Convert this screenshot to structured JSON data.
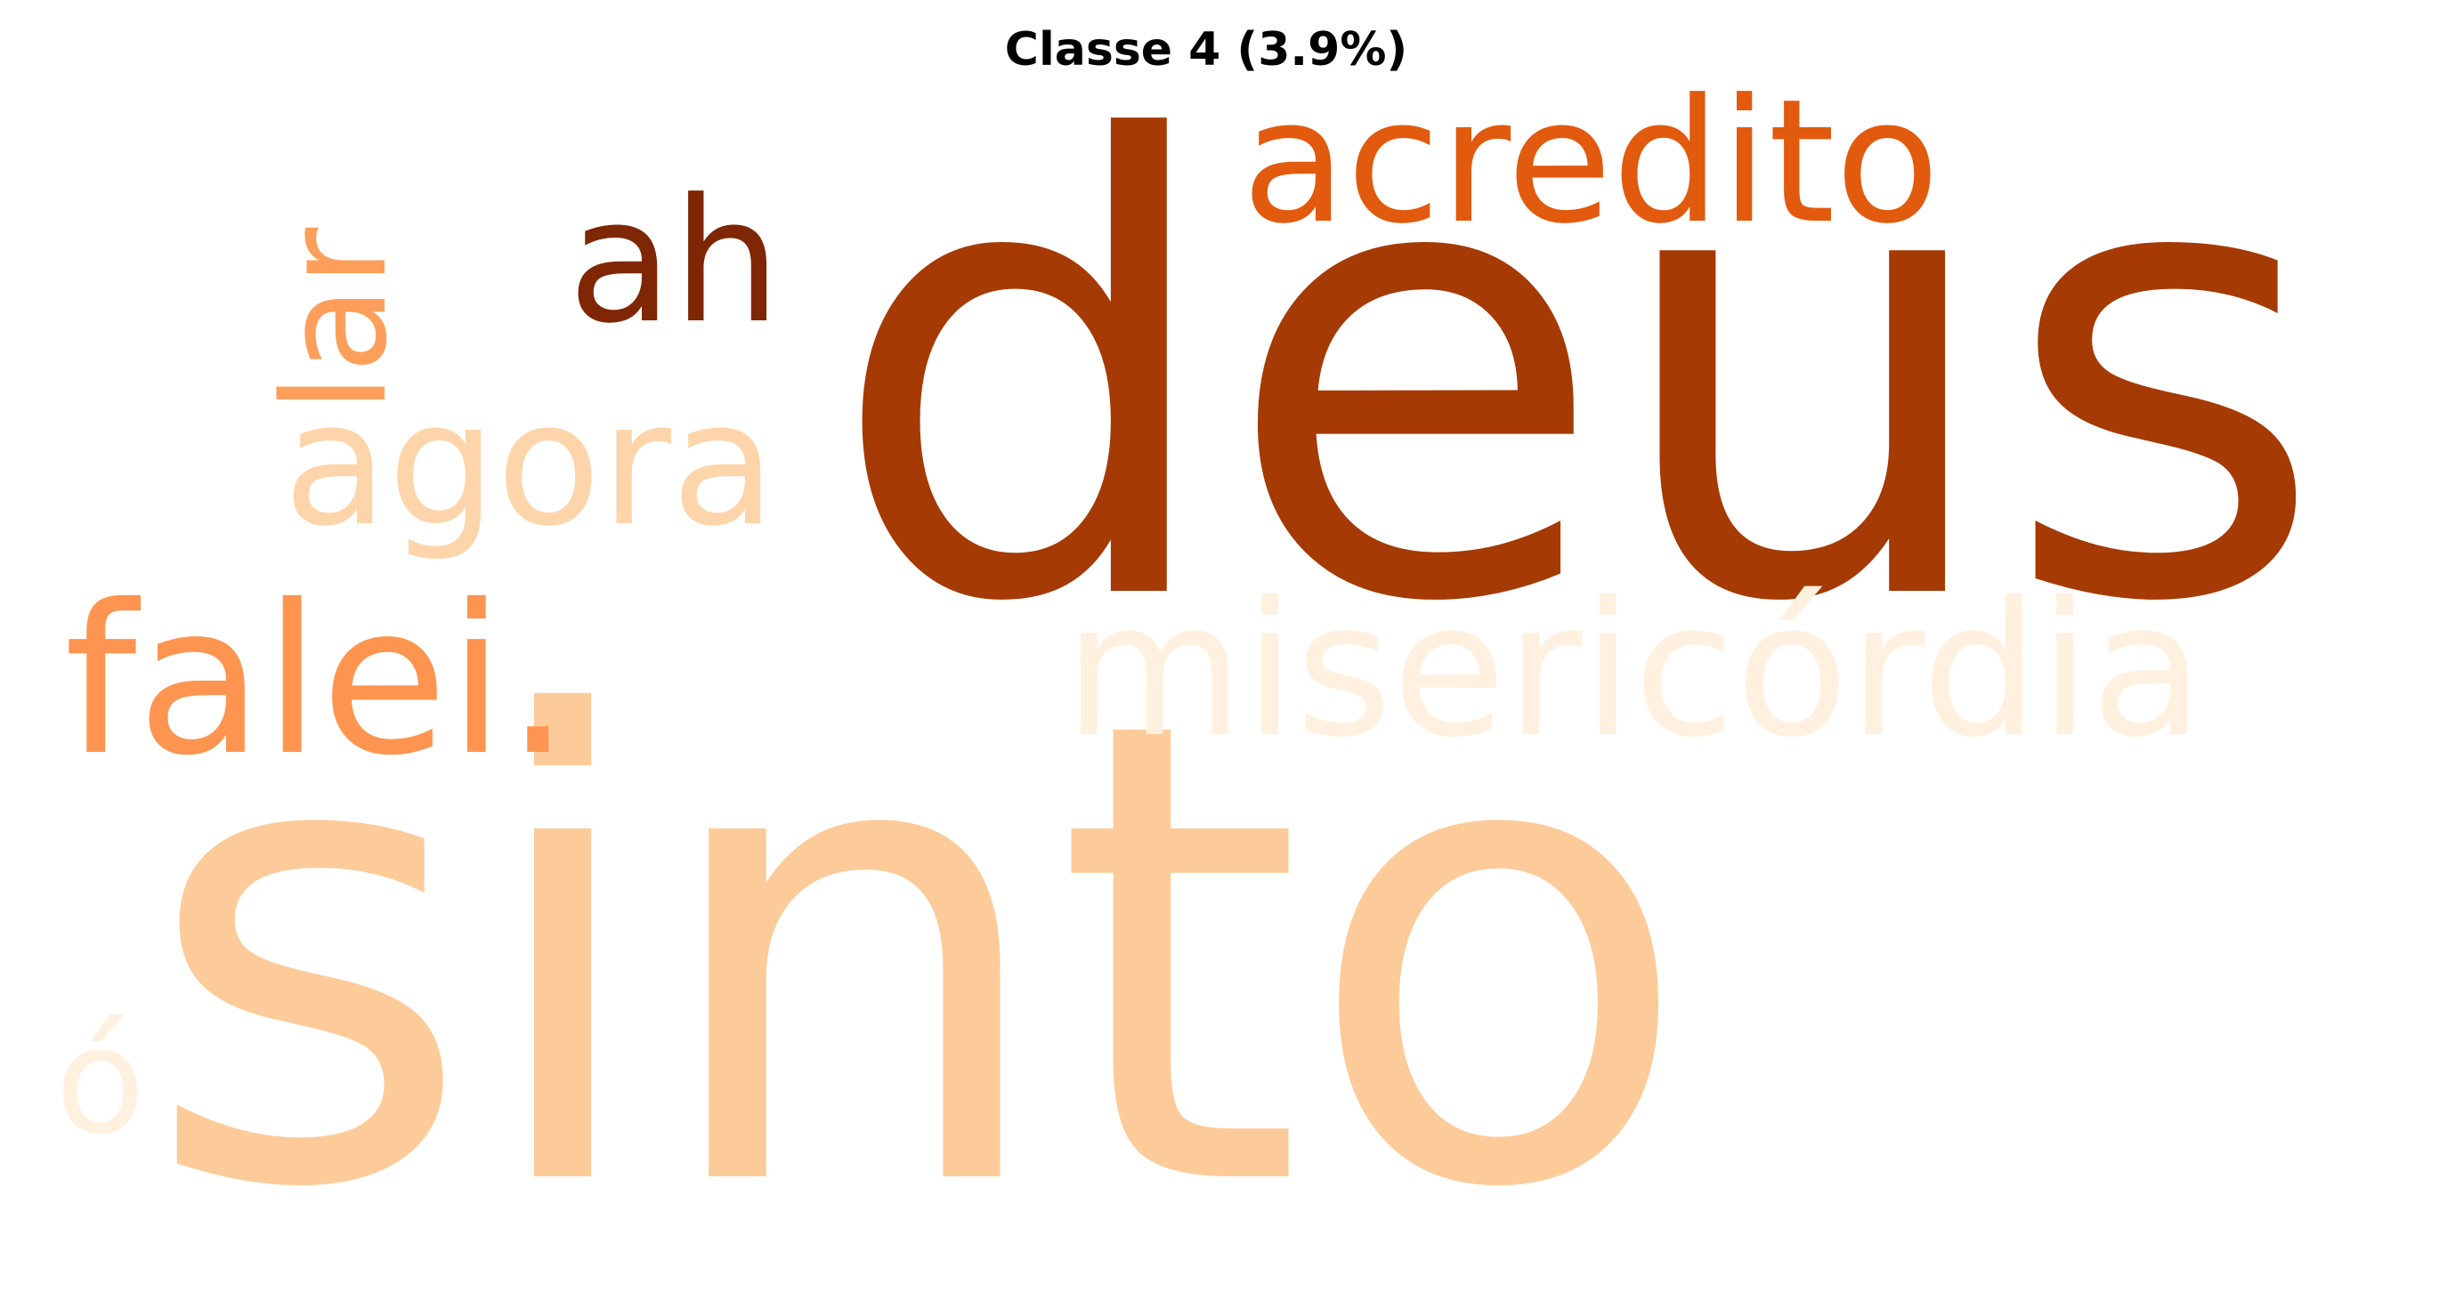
{
  "title": "Classe 4 (3.9%)",
  "words": [
    {
      "id": "deus",
      "text": "deus",
      "color": "#a53a04"
    },
    {
      "id": "sinto",
      "text": "sinto",
      "color": "#fdcb9a"
    },
    {
      "id": "acredito",
      "text": "acredito",
      "color": "#e25a0d"
    },
    {
      "id": "ah",
      "text": "ah",
      "color": "#7f2704"
    },
    {
      "id": "lar",
      "text": "lar",
      "color": "#fd9f5a"
    },
    {
      "id": "agora",
      "text": "agora",
      "color": "#fed5ab"
    },
    {
      "id": "falei",
      "text": "falei.",
      "color": "#fd9551"
    },
    {
      "id": "misericordia",
      "text": "misericórdia",
      "color": "#fff0e0"
    },
    {
      "id": "o",
      "text": "ó",
      "color": "#fff0e0"
    }
  ]
}
